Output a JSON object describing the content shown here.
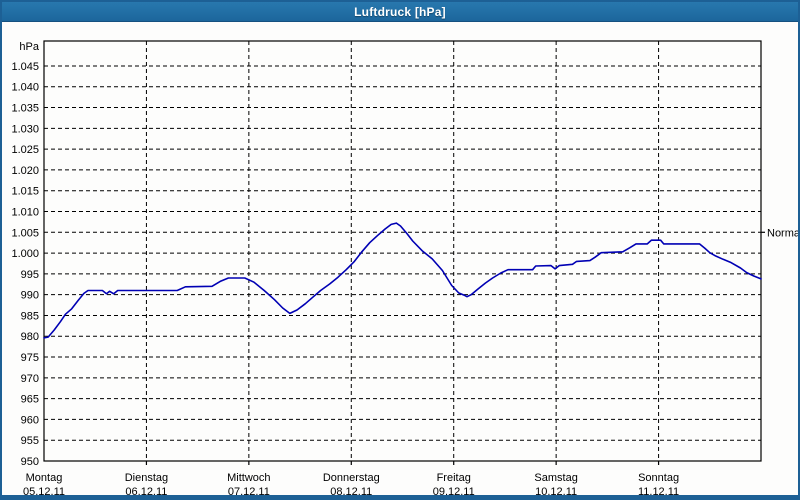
{
  "window": {
    "title": "Luftdruck [hPa]"
  },
  "colors": {
    "titlebar_top": "#2878ae",
    "titlebar_bottom": "#1c669c",
    "window_border": "#1d6095",
    "plot_background": "#fdfdfc",
    "grid": "#000000",
    "axis": "#000000",
    "line": "#0000b4",
    "title_text": "#ffffff",
    "label_text": "#000000"
  },
  "chart_data": {
    "type": "line",
    "title": "Luftdruck [hPa]",
    "ylabel": "hPa",
    "unit": "hPa",
    "ylim": [
      950,
      1051
    ],
    "xlim_days": [
      0,
      7
    ],
    "grid": "dashed",
    "legend": "none",
    "y_ticks": [
      {
        "value": 1045,
        "label": "1.045"
      },
      {
        "value": 1040,
        "label": "1.040"
      },
      {
        "value": 1035,
        "label": "1.035"
      },
      {
        "value": 1030,
        "label": "1.030"
      },
      {
        "value": 1025,
        "label": "1.025"
      },
      {
        "value": 1020,
        "label": "1.020"
      },
      {
        "value": 1015,
        "label": "1.015"
      },
      {
        "value": 1010,
        "label": "1.010"
      },
      {
        "value": 1005,
        "label": "1.005"
      },
      {
        "value": 1000,
        "label": "1.000"
      },
      {
        "value": 995,
        "label": "995"
      },
      {
        "value": 990,
        "label": "990"
      },
      {
        "value": 985,
        "label": "985"
      },
      {
        "value": 980,
        "label": "980"
      },
      {
        "value": 975,
        "label": "975"
      },
      {
        "value": 970,
        "label": "970"
      },
      {
        "value": 965,
        "label": "965"
      },
      {
        "value": 960,
        "label": "960"
      },
      {
        "value": 955,
        "label": "955"
      },
      {
        "value": 950,
        "label": "950"
      }
    ],
    "x_ticks": [
      {
        "day": 0,
        "weekday": "Montag",
        "date": "05.12.11"
      },
      {
        "day": 1,
        "weekday": "Dienstag",
        "date": "06.12.11"
      },
      {
        "day": 2,
        "weekday": "Mittwoch",
        "date": "07.12.11"
      },
      {
        "day": 3,
        "weekday": "Donnerstag",
        "date": "08.12.11"
      },
      {
        "day": 4,
        "weekday": "Freitag",
        "date": "09.12.11"
      },
      {
        "day": 5,
        "weekday": "Samstag",
        "date": "10.12.11"
      },
      {
        "day": 6,
        "weekday": "Sonntag",
        "date": "11.12.11"
      }
    ],
    "normal_marker": {
      "label": "Normal",
      "value": 1005,
      "side": "right"
    },
    "series": [
      {
        "name": "Luftdruck",
        "color": "#0000b4",
        "points": [
          [
            0.0,
            979.6
          ],
          [
            0.04,
            979.8
          ],
          [
            0.1,
            981.5
          ],
          [
            0.16,
            983.5
          ],
          [
            0.21,
            985.3
          ],
          [
            0.27,
            986.6
          ],
          [
            0.33,
            988.5
          ],
          [
            0.39,
            990.3
          ],
          [
            0.43,
            991.0
          ],
          [
            0.57,
            991.0
          ],
          [
            0.61,
            990.2
          ],
          [
            0.64,
            990.8
          ],
          [
            0.68,
            990.2
          ],
          [
            0.72,
            991.0
          ],
          [
            1.3,
            991.0
          ],
          [
            1.38,
            991.9
          ],
          [
            1.64,
            992.0
          ],
          [
            1.72,
            993.2
          ],
          [
            1.8,
            994.0
          ],
          [
            1.96,
            994.0
          ],
          [
            2.05,
            993.0
          ],
          [
            2.15,
            991.0
          ],
          [
            2.25,
            988.8
          ],
          [
            2.33,
            986.8
          ],
          [
            2.4,
            985.5
          ],
          [
            2.47,
            986.3
          ],
          [
            2.55,
            987.8
          ],
          [
            2.63,
            989.5
          ],
          [
            2.7,
            991.0
          ],
          [
            2.79,
            992.6
          ],
          [
            2.87,
            994.2
          ],
          [
            2.95,
            996.0
          ],
          [
            3.03,
            998.0
          ],
          [
            3.1,
            1000.2
          ],
          [
            3.18,
            1002.5
          ],
          [
            3.26,
            1004.3
          ],
          [
            3.33,
            1005.8
          ],
          [
            3.39,
            1006.9
          ],
          [
            3.44,
            1007.2
          ],
          [
            3.48,
            1006.5
          ],
          [
            3.54,
            1004.8
          ],
          [
            3.6,
            1002.9
          ],
          [
            3.69,
            1000.6
          ],
          [
            3.79,
            998.6
          ],
          [
            3.89,
            995.8
          ],
          [
            3.98,
            992.2
          ],
          [
            4.05,
            990.4
          ],
          [
            4.1,
            989.9
          ],
          [
            4.13,
            989.5
          ],
          [
            4.17,
            990.0
          ],
          [
            4.24,
            991.4
          ],
          [
            4.31,
            992.8
          ],
          [
            4.38,
            994.0
          ],
          [
            4.46,
            995.2
          ],
          [
            4.53,
            996.0
          ],
          [
            4.77,
            996.0
          ],
          [
            4.8,
            996.9
          ],
          [
            4.95,
            997.0
          ],
          [
            4.99,
            996.2
          ],
          [
            5.03,
            997.0
          ],
          [
            5.16,
            997.3
          ],
          [
            5.2,
            998.0
          ],
          [
            5.33,
            998.2
          ],
          [
            5.38,
            999.0
          ],
          [
            5.44,
            1000.1
          ],
          [
            5.65,
            1000.3
          ],
          [
            5.72,
            1001.3
          ],
          [
            5.78,
            1002.2
          ],
          [
            5.89,
            1002.2
          ],
          [
            5.93,
            1003.1
          ],
          [
            6.02,
            1003.1
          ],
          [
            6.05,
            1002.2
          ],
          [
            6.4,
            1002.2
          ],
          [
            6.45,
            1001.2
          ],
          [
            6.5,
            1000.1
          ],
          [
            6.55,
            999.4
          ],
          [
            6.63,
            998.5
          ],
          [
            6.7,
            997.8
          ],
          [
            6.8,
            996.4
          ],
          [
            6.86,
            995.3
          ],
          [
            6.93,
            994.5
          ],
          [
            7.0,
            993.8
          ]
        ]
      }
    ]
  }
}
